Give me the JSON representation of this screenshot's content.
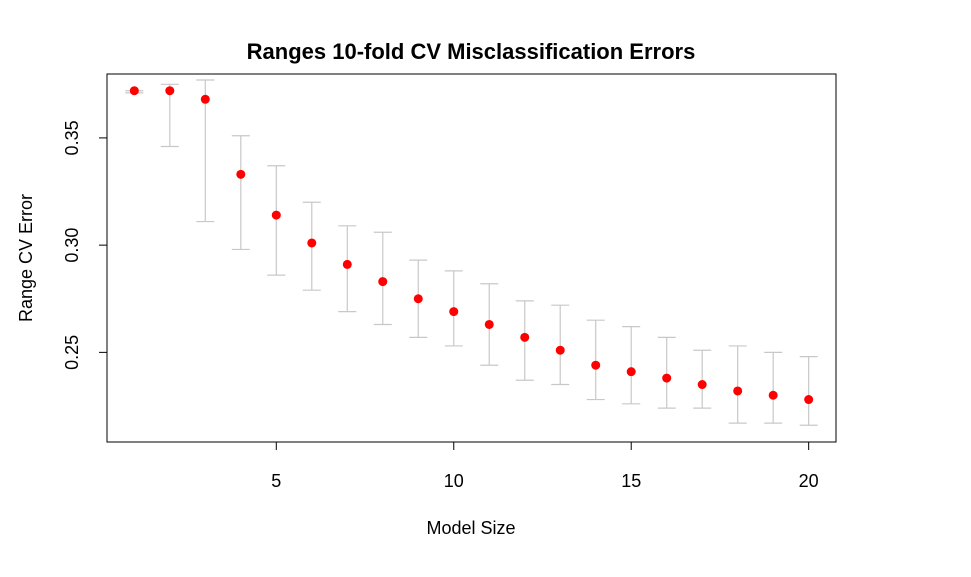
{
  "chart_data": {
    "type": "scatter",
    "title": "Ranges 10-fold CV Misclassification Errors",
    "xlabel": "Model Size",
    "ylabel": "Range CV Error",
    "xlim": [
      0.23,
      20.77
    ],
    "ylim": [
      0.2082,
      0.3798
    ],
    "xticks": [
      5,
      10,
      15,
      20
    ],
    "yticks": [
      0.25,
      0.3,
      0.35
    ],
    "ytick_labels": [
      "0.25",
      "0.30",
      "0.35"
    ],
    "xtick_labels": [
      "5",
      "10",
      "15",
      "20"
    ],
    "point_color": "#ff0000",
    "errorbar_color": "#c8c8c8",
    "series": [
      {
        "name": "Range CV Error",
        "x": [
          1,
          2,
          3,
          4,
          5,
          6,
          7,
          8,
          9,
          10,
          11,
          12,
          13,
          14,
          15,
          16,
          17,
          18,
          19,
          20
        ],
        "y": [
          0.372,
          0.372,
          0.368,
          0.333,
          0.314,
          0.301,
          0.291,
          0.283,
          0.275,
          0.269,
          0.263,
          0.257,
          0.251,
          0.244,
          0.241,
          0.238,
          0.235,
          0.232,
          0.23,
          0.228
        ],
        "lower": [
          0.371,
          0.346,
          0.311,
          0.298,
          0.286,
          0.279,
          0.269,
          0.263,
          0.257,
          0.253,
          0.244,
          0.237,
          0.235,
          0.228,
          0.226,
          0.224,
          0.224,
          0.217,
          0.217,
          0.216
        ],
        "upper": [
          0.372,
          0.375,
          0.377,
          0.351,
          0.337,
          0.32,
          0.309,
          0.306,
          0.293,
          0.288,
          0.282,
          0.274,
          0.272,
          0.265,
          0.262,
          0.257,
          0.251,
          0.253,
          0.25,
          0.248
        ]
      }
    ]
  }
}
